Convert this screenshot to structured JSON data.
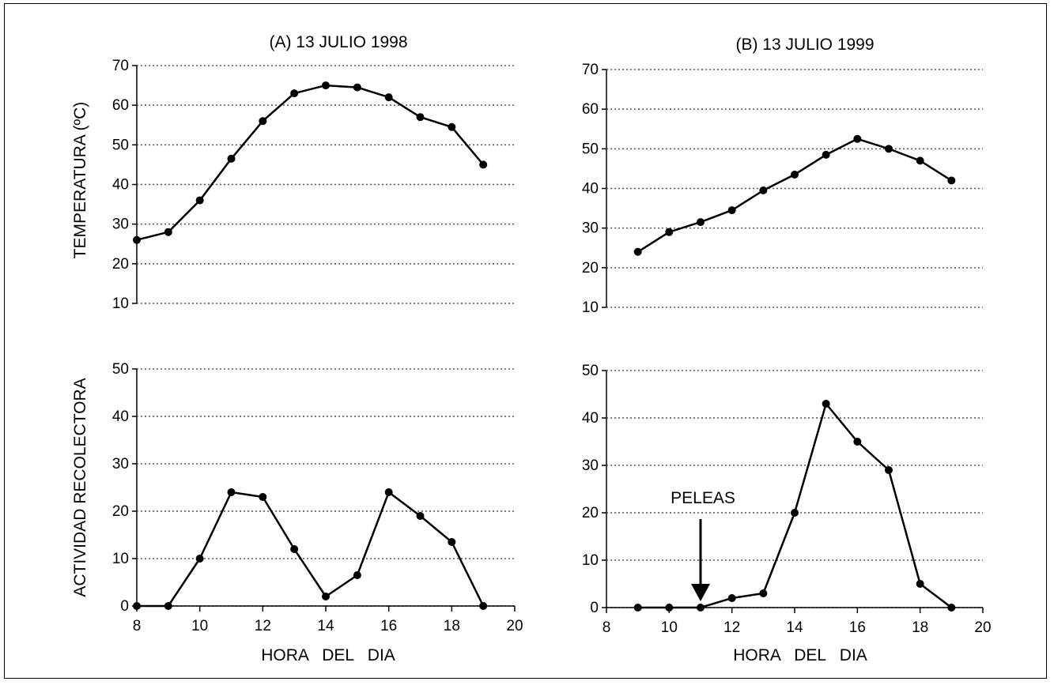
{
  "figure": {
    "ylabel_top": "TEMPERATURA  (ºC)",
    "ylabel_bottom": "ACTIVIDAD RECOLECTORA",
    "line_color": "#000000",
    "grid_color": "#555555"
  },
  "chart_data": [
    {
      "id": "temp-1998",
      "type": "line",
      "title": "(A)  13  JULIO  1998",
      "xlabel": "",
      "ylabel": "TEMPERATURA  (ºC)",
      "xlim": [
        8,
        20
      ],
      "ylim": [
        10,
        70
      ],
      "yticks": [
        10,
        20,
        30,
        40,
        50,
        60,
        70
      ],
      "xticks": [],
      "grid": "horizontal dotted",
      "series": [
        {
          "x": [
            8,
            9,
            10,
            11,
            12,
            13,
            14,
            15,
            16,
            17,
            18,
            19
          ],
          "y": [
            26,
            28,
            36,
            46.5,
            56,
            63,
            65,
            64.5,
            62,
            57,
            54.5,
            45
          ]
        }
      ]
    },
    {
      "id": "temp-1999",
      "type": "line",
      "title": "(B)  13  JULIO  1999",
      "xlabel": "",
      "ylabel": "",
      "xlim": [
        8,
        20
      ],
      "ylim": [
        10,
        70
      ],
      "yticks": [
        10,
        20,
        30,
        40,
        50,
        60,
        70
      ],
      "xticks": [],
      "grid": "horizontal dotted",
      "series": [
        {
          "x": [
            9,
            10,
            11,
            12,
            13,
            14,
            15,
            16,
            17,
            18,
            19
          ],
          "y": [
            24,
            29,
            31.5,
            34.5,
            39.5,
            43.5,
            48.5,
            52.5,
            50,
            47,
            42
          ]
        }
      ]
    },
    {
      "id": "activity-1998",
      "type": "line",
      "title": "",
      "xlabel": "HORA   DEL   DIA",
      "ylabel": "ACTIVIDAD RECOLECTORA",
      "xlim": [
        8,
        20
      ],
      "ylim": [
        0,
        50
      ],
      "yticks": [
        0,
        10,
        20,
        30,
        40,
        50
      ],
      "xticks": [
        8,
        10,
        12,
        14,
        16,
        18,
        20
      ],
      "grid": "horizontal dotted",
      "series": [
        {
          "x": [
            8,
            9,
            10,
            11,
            12,
            13,
            14,
            15,
            16,
            17,
            18,
            19
          ],
          "y": [
            0,
            0,
            10,
            24,
            23,
            12,
            2,
            6.5,
            24,
            19,
            13.5,
            0
          ]
        }
      ]
    },
    {
      "id": "activity-1999",
      "type": "line",
      "title": "",
      "xlabel": "HORA   DEL   DIA",
      "ylabel": "",
      "xlim": [
        8,
        20
      ],
      "ylim": [
        0,
        50
      ],
      "yticks": [
        0,
        10,
        20,
        30,
        40,
        50
      ],
      "xticks": [
        8,
        10,
        12,
        14,
        16,
        18,
        20
      ],
      "grid": "horizontal dotted",
      "annotation": {
        "text": "PELEAS",
        "x": 11,
        "y_from": 20,
        "y_to": 0
      },
      "series": [
        {
          "x": [
            9,
            10,
            11,
            12,
            13,
            14,
            15,
            16,
            17,
            18,
            19
          ],
          "y": [
            0,
            0,
            0,
            2,
            3,
            20,
            43,
            35,
            29,
            5,
            0
          ]
        }
      ]
    }
  ]
}
